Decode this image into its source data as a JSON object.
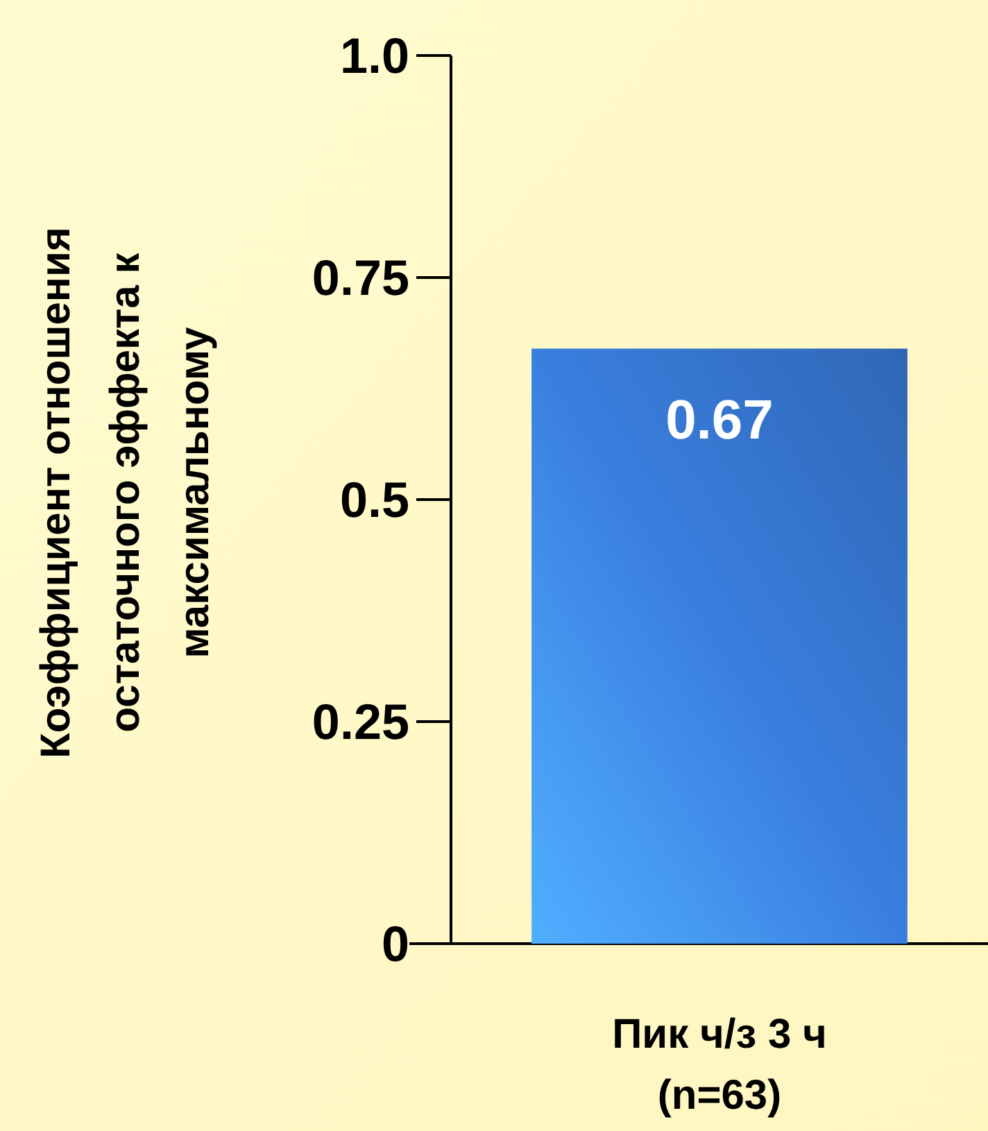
{
  "chart_data": {
    "type": "bar",
    "ylabel": "Коэффициент отношения остаточного эффекта к максимальному",
    "categories": [
      "Пик ч/з 3 ч (n=63)"
    ],
    "values": [
      0.67
    ],
    "color": "#3a7fe0",
    "data_labels": true,
    "ylim": [
      0,
      1
    ],
    "yticks": [
      {
        "value": 0,
        "label": "0"
      },
      0.25,
      0.5,
      0.75,
      {
        "value": 1,
        "label": "1.0"
      }
    ]
  }
}
